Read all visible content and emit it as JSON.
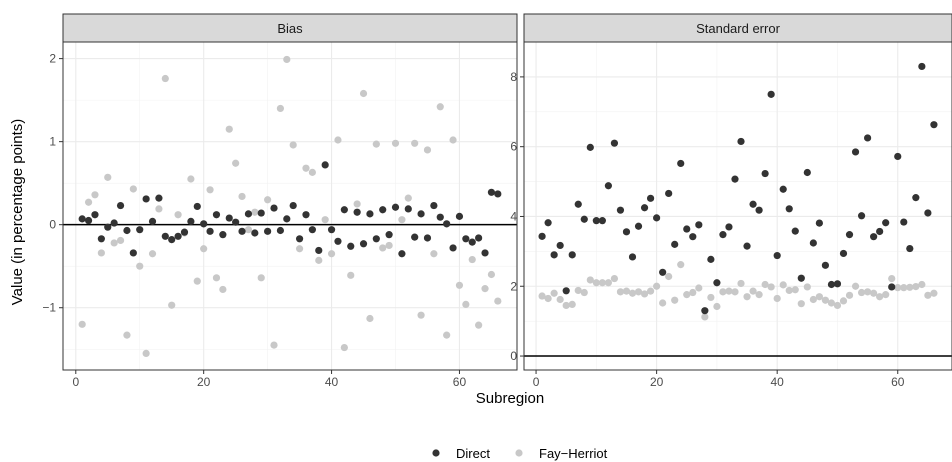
{
  "chart_data": {
    "type": "scatter",
    "ylabel": "Value (in percentage points)",
    "xlabel": "Subregion",
    "colors": {
      "Direct": "#333333",
      "Fay−Herriot": "#c8c8c8"
    },
    "legend": {
      "position": "bottom",
      "items": [
        "Direct",
        "Fay−Herriot"
      ]
    },
    "grid": true,
    "panels": [
      {
        "title": "Bias",
        "xlim": [
          -2,
          69
        ],
        "ylim": [
          -1.75,
          2.2
        ],
        "xticks": [
          0,
          20,
          40,
          60
        ],
        "yticks": [
          -1,
          0,
          1,
          2
        ],
        "ytick_labels": [
          "−1",
          "0",
          "1",
          "2"
        ],
        "hline": 0,
        "series": [
          {
            "name": "Direct",
            "x": [
              1,
              2,
              3,
              4,
              5,
              6,
              7,
              8,
              9,
              10,
              11,
              12,
              13,
              14,
              15,
              16,
              17,
              18,
              19,
              20,
              21,
              22,
              23,
              24,
              25,
              26,
              27,
              28,
              29,
              30,
              31,
              32,
              33,
              34,
              35,
              36,
              37,
              38,
              39,
              40,
              41,
              42,
              43,
              44,
              45,
              46,
              47,
              48,
              49,
              50,
              51,
              52,
              53,
              54,
              55,
              56,
              57,
              58,
              59,
              60,
              61,
              62,
              63,
              64,
              65,
              66
            ],
            "y": [
              0.07,
              0.05,
              0.12,
              -0.17,
              -0.03,
              0.02,
              0.23,
              -0.07,
              -0.34,
              -0.06,
              0.31,
              0.04,
              0.32,
              -0.14,
              -0.18,
              -0.14,
              -0.09,
              0.04,
              0.22,
              0.01,
              -0.08,
              0.12,
              -0.12,
              0.08,
              0.03,
              -0.08,
              0.13,
              -0.1,
              0.14,
              -0.08,
              0.2,
              -0.07,
              0.07,
              0.23,
              -0.17,
              0.12,
              -0.06,
              -0.31,
              0.72,
              -0.06,
              -0.2,
              0.18,
              -0.26,
              0.15,
              -0.23,
              0.13,
              -0.17,
              0.18,
              -0.12,
              0.21,
              -0.35,
              0.19,
              -0.15,
              0.13,
              -0.16,
              0.23,
              0.09,
              0.01,
              -0.28,
              0.1,
              -0.17,
              -0.21,
              -0.16,
              -0.34,
              0.39,
              0.37
            ]
          },
          {
            "name": "Fay−Herriot",
            "x": [
              1,
              2,
              3,
              4,
              5,
              6,
              7,
              8,
              9,
              10,
              11,
              12,
              13,
              14,
              15,
              16,
              17,
              18,
              19,
              20,
              21,
              22,
              23,
              24,
              25,
              26,
              27,
              28,
              29,
              30,
              31,
              32,
              33,
              34,
              35,
              36,
              37,
              38,
              39,
              40,
              41,
              42,
              43,
              44,
              45,
              46,
              47,
              48,
              49,
              50,
              51,
              52,
              53,
              54,
              55,
              56,
              57,
              58,
              59,
              60,
              61,
              62,
              63,
              64,
              65,
              66
            ],
            "y": [
              -1.2,
              0.27,
              0.36,
              -0.34,
              0.57,
              -0.22,
              -0.19,
              -1.33,
              0.43,
              -0.5,
              -1.55,
              -0.35,
              0.19,
              1.76,
              -0.97,
              0.12,
              -0.1,
              0.55,
              -0.68,
              -0.29,
              0.42,
              -0.64,
              -0.78,
              1.15,
              0.74,
              0.34,
              -0.06,
              0.15,
              -0.64,
              0.3,
              -1.45,
              1.4,
              1.99,
              0.96,
              -0.29,
              0.68,
              0.63,
              -0.43,
              0.06,
              -0.35,
              1.02,
              -1.48,
              -0.61,
              0.25,
              1.58,
              -1.13,
              0.97,
              -0.28,
              -0.25,
              0.98,
              0.06,
              0.32,
              0.98,
              -1.09,
              0.9,
              -0.35,
              1.42,
              -1.33,
              1.02,
              -0.73,
              -0.96,
              -0.42,
              -1.21,
              -0.77,
              -0.6,
              -0.92
            ]
          }
        ]
      },
      {
        "title": "Standard error",
        "xlim": [
          -2,
          69
        ],
        "ylim": [
          -0.4,
          9.0
        ],
        "xticks": [
          0,
          20,
          40,
          60
        ],
        "yticks": [
          0,
          2,
          4,
          6,
          8
        ],
        "ytick_labels": [
          "0",
          "2",
          "4",
          "6",
          "8"
        ],
        "hline": 0,
        "series": [
          {
            "name": "Direct",
            "x": [
              1,
              2,
              3,
              4,
              5,
              6,
              7,
              8,
              9,
              10,
              11,
              12,
              13,
              14,
              15,
              16,
              17,
              18,
              19,
              20,
              21,
              22,
              23,
              24,
              25,
              26,
              27,
              28,
              29,
              30,
              31,
              32,
              33,
              34,
              35,
              36,
              37,
              38,
              39,
              40,
              41,
              42,
              43,
              44,
              45,
              46,
              47,
              48,
              49,
              50,
              51,
              52,
              53,
              54,
              55,
              56,
              57,
              58,
              59,
              60,
              61,
              62,
              63,
              64,
              65,
              66
            ],
            "y": [
              3.43,
              3.82,
              2.9,
              3.17,
              1.87,
              2.9,
              4.35,
              3.92,
              5.98,
              3.88,
              3.88,
              4.88,
              6.1,
              4.18,
              3.56,
              2.84,
              3.72,
              4.25,
              4.52,
              3.96,
              2.4,
              4.66,
              3.2,
              5.52,
              3.64,
              3.42,
              3.76,
              1.3,
              2.77,
              2.1,
              3.48,
              3.7,
              5.07,
              6.15,
              3.15,
              4.35,
              4.18,
              5.23,
              7.5,
              2.88,
              4.78,
              4.22,
              3.58,
              2.23,
              5.26,
              3.24,
              3.81,
              2.6,
              2.05,
              2.07,
              2.94,
              3.48,
              5.85,
              4.02,
              6.25,
              3.42,
              3.57,
              3.82,
              1.98,
              5.72,
              3.84,
              3.08,
              4.54,
              8.3,
              4.1,
              6.63
            ]
          },
          {
            "name": "Fay−Herriot",
            "x": [
              1,
              2,
              3,
              4,
              5,
              6,
              7,
              8,
              9,
              10,
              11,
              12,
              13,
              14,
              15,
              16,
              17,
              18,
              19,
              20,
              21,
              22,
              23,
              24,
              25,
              26,
              27,
              28,
              29,
              30,
              31,
              32,
              33,
              34,
              35,
              36,
              37,
              38,
              39,
              40,
              41,
              42,
              43,
              44,
              45,
              46,
              47,
              48,
              49,
              50,
              51,
              52,
              53,
              54,
              55,
              56,
              57,
              58,
              59,
              60,
              61,
              62,
              63,
              64,
              65,
              66
            ],
            "y": [
              1.72,
              1.65,
              1.8,
              1.62,
              1.45,
              1.48,
              1.88,
              1.82,
              2.18,
              2.1,
              2.1,
              2.1,
              2.22,
              1.84,
              1.86,
              1.8,
              1.84,
              1.78,
              1.86,
              2.0,
              1.52,
              2.28,
              1.6,
              2.62,
              1.76,
              1.82,
              1.95,
              1.12,
              1.68,
              1.42,
              1.84,
              1.86,
              1.84,
              2.08,
              1.7,
              1.86,
              1.76,
              2.05,
              1.98,
              1.65,
              2.04,
              1.88,
              1.9,
              1.5,
              1.98,
              1.62,
              1.7,
              1.6,
              1.52,
              1.45,
              1.58,
              1.74,
              2.0,
              1.82,
              1.84,
              1.8,
              1.7,
              1.76,
              2.22,
              1.96,
              1.96,
              1.97,
              1.99,
              2.05,
              1.74,
              1.8
            ]
          }
        ]
      }
    ]
  }
}
